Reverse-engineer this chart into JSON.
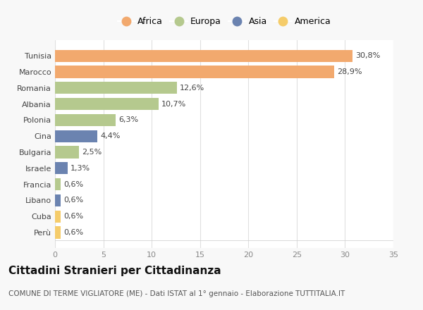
{
  "categories": [
    "Tunisia",
    "Marocco",
    "Romania",
    "Albania",
    "Polonia",
    "Cina",
    "Bulgaria",
    "Israele",
    "Francia",
    "Libano",
    "Cuba",
    "Perù"
  ],
  "values": [
    30.8,
    28.9,
    12.6,
    10.7,
    6.3,
    4.4,
    2.5,
    1.3,
    0.6,
    0.6,
    0.6,
    0.6
  ],
  "labels": [
    "30,8%",
    "28,9%",
    "12,6%",
    "10,7%",
    "6,3%",
    "4,4%",
    "2,5%",
    "1,3%",
    "0,6%",
    "0,6%",
    "0,6%",
    "0,6%"
  ],
  "continents": [
    "Africa",
    "Africa",
    "Europa",
    "Europa",
    "Europa",
    "Asia",
    "Europa",
    "Asia",
    "Europa",
    "Asia",
    "America",
    "America"
  ],
  "colors": {
    "Africa": "#F2A96E",
    "Europa": "#B5C98E",
    "Asia": "#6B83B0",
    "America": "#F5CC6A"
  },
  "legend_order": [
    "Africa",
    "Europa",
    "Asia",
    "America"
  ],
  "xlim": [
    0,
    35
  ],
  "xticks": [
    0,
    5,
    10,
    15,
    20,
    25,
    30,
    35
  ],
  "title": "Cittadini Stranieri per Cittadinanza",
  "subtitle": "COMUNE DI TERME VIGLIATORE (ME) - Dati ISTAT al 1° gennaio - Elaborazione TUTTITALIA.IT",
  "background_color": "#f8f8f8",
  "bar_background": "#ffffff",
  "title_fontsize": 11,
  "subtitle_fontsize": 7.5,
  "label_fontsize": 8,
  "tick_fontsize": 8,
  "legend_fontsize": 9
}
